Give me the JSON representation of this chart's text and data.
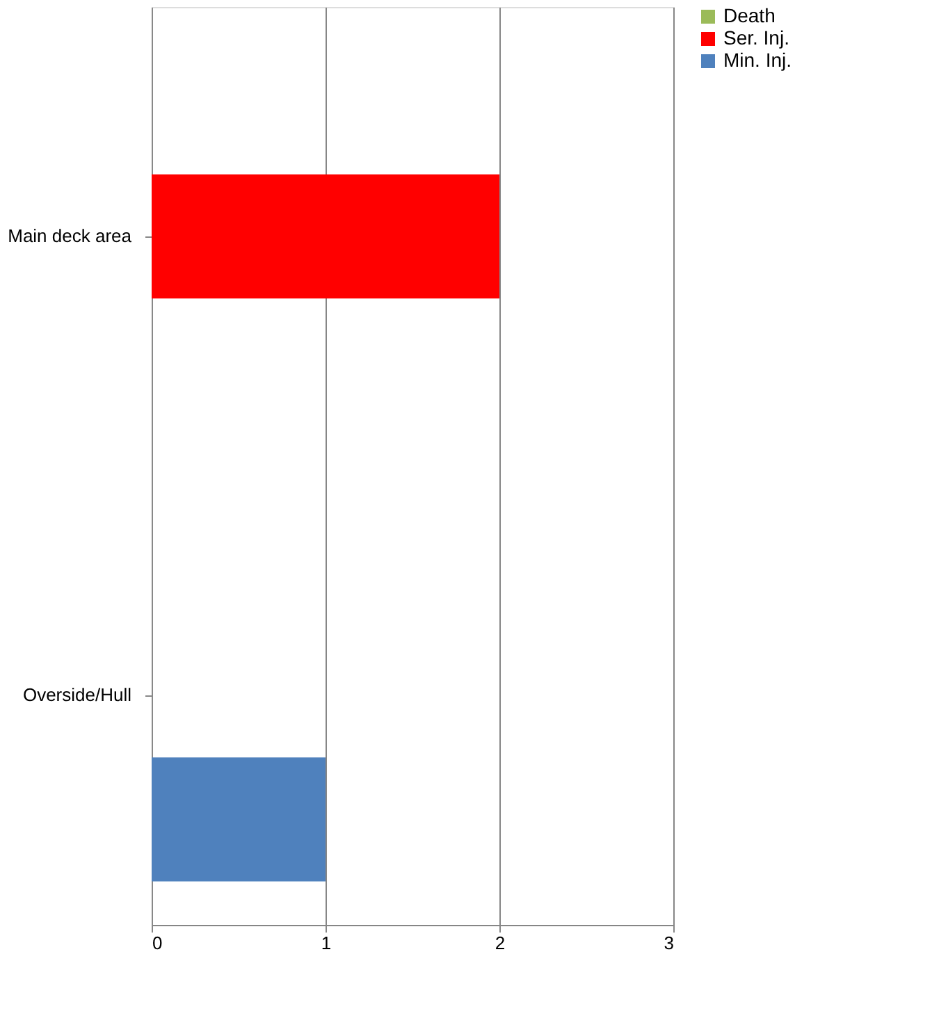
{
  "chart_data": {
    "type": "bar",
    "orientation": "horizontal",
    "categories": [
      "Main deck area",
      "Overside/Hull"
    ],
    "series": [
      {
        "name": "Death",
        "color": "#9bbb59",
        "values": [
          0,
          0
        ]
      },
      {
        "name": "Ser. Inj.",
        "color": "#ff0000",
        "values": [
          2,
          0
        ]
      },
      {
        "name": "Min. Inj.",
        "color": "#4f81bd",
        "values": [
          0,
          1
        ]
      }
    ],
    "xlim": [
      0,
      3
    ],
    "xticks": [
      0,
      1,
      2,
      3
    ],
    "grid": "x",
    "legend": "right"
  }
}
